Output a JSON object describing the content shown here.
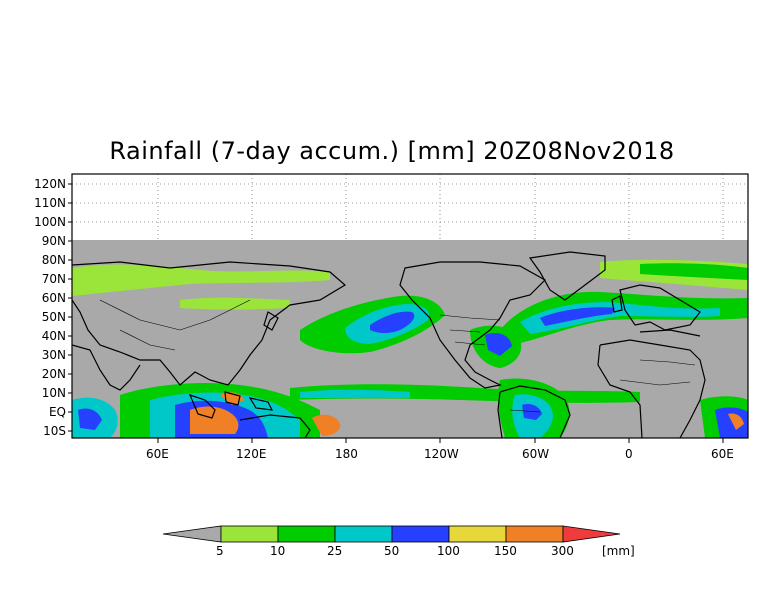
{
  "title": "Rainfall (7-day accum.) [mm] 20Z08Nov2018",
  "map": {
    "lat_labels": [
      "120N",
      "110N",
      "100N",
      "90N",
      "80N",
      "70N",
      "60N",
      "50N",
      "40N",
      "30N",
      "20N",
      "10N",
      "EQ",
      "10S"
    ],
    "lon_labels": [
      "60E",
      "120E",
      "180",
      "120W",
      "60W",
      "0",
      "60E"
    ],
    "no_data_color": "#a9a9a9",
    "coastline_color": "#000000",
    "grid": "dotted"
  },
  "colorbar": {
    "colors": [
      "#a9a9a9",
      "#9be53b",
      "#00cc00",
      "#00c8c8",
      "#2640ff",
      "#e6d83a",
      "#f08026",
      "#ef3b3b"
    ],
    "labels": [
      "5",
      "10",
      "25",
      "50",
      "100",
      "150",
      "300"
    ],
    "units": "[mm]"
  }
}
